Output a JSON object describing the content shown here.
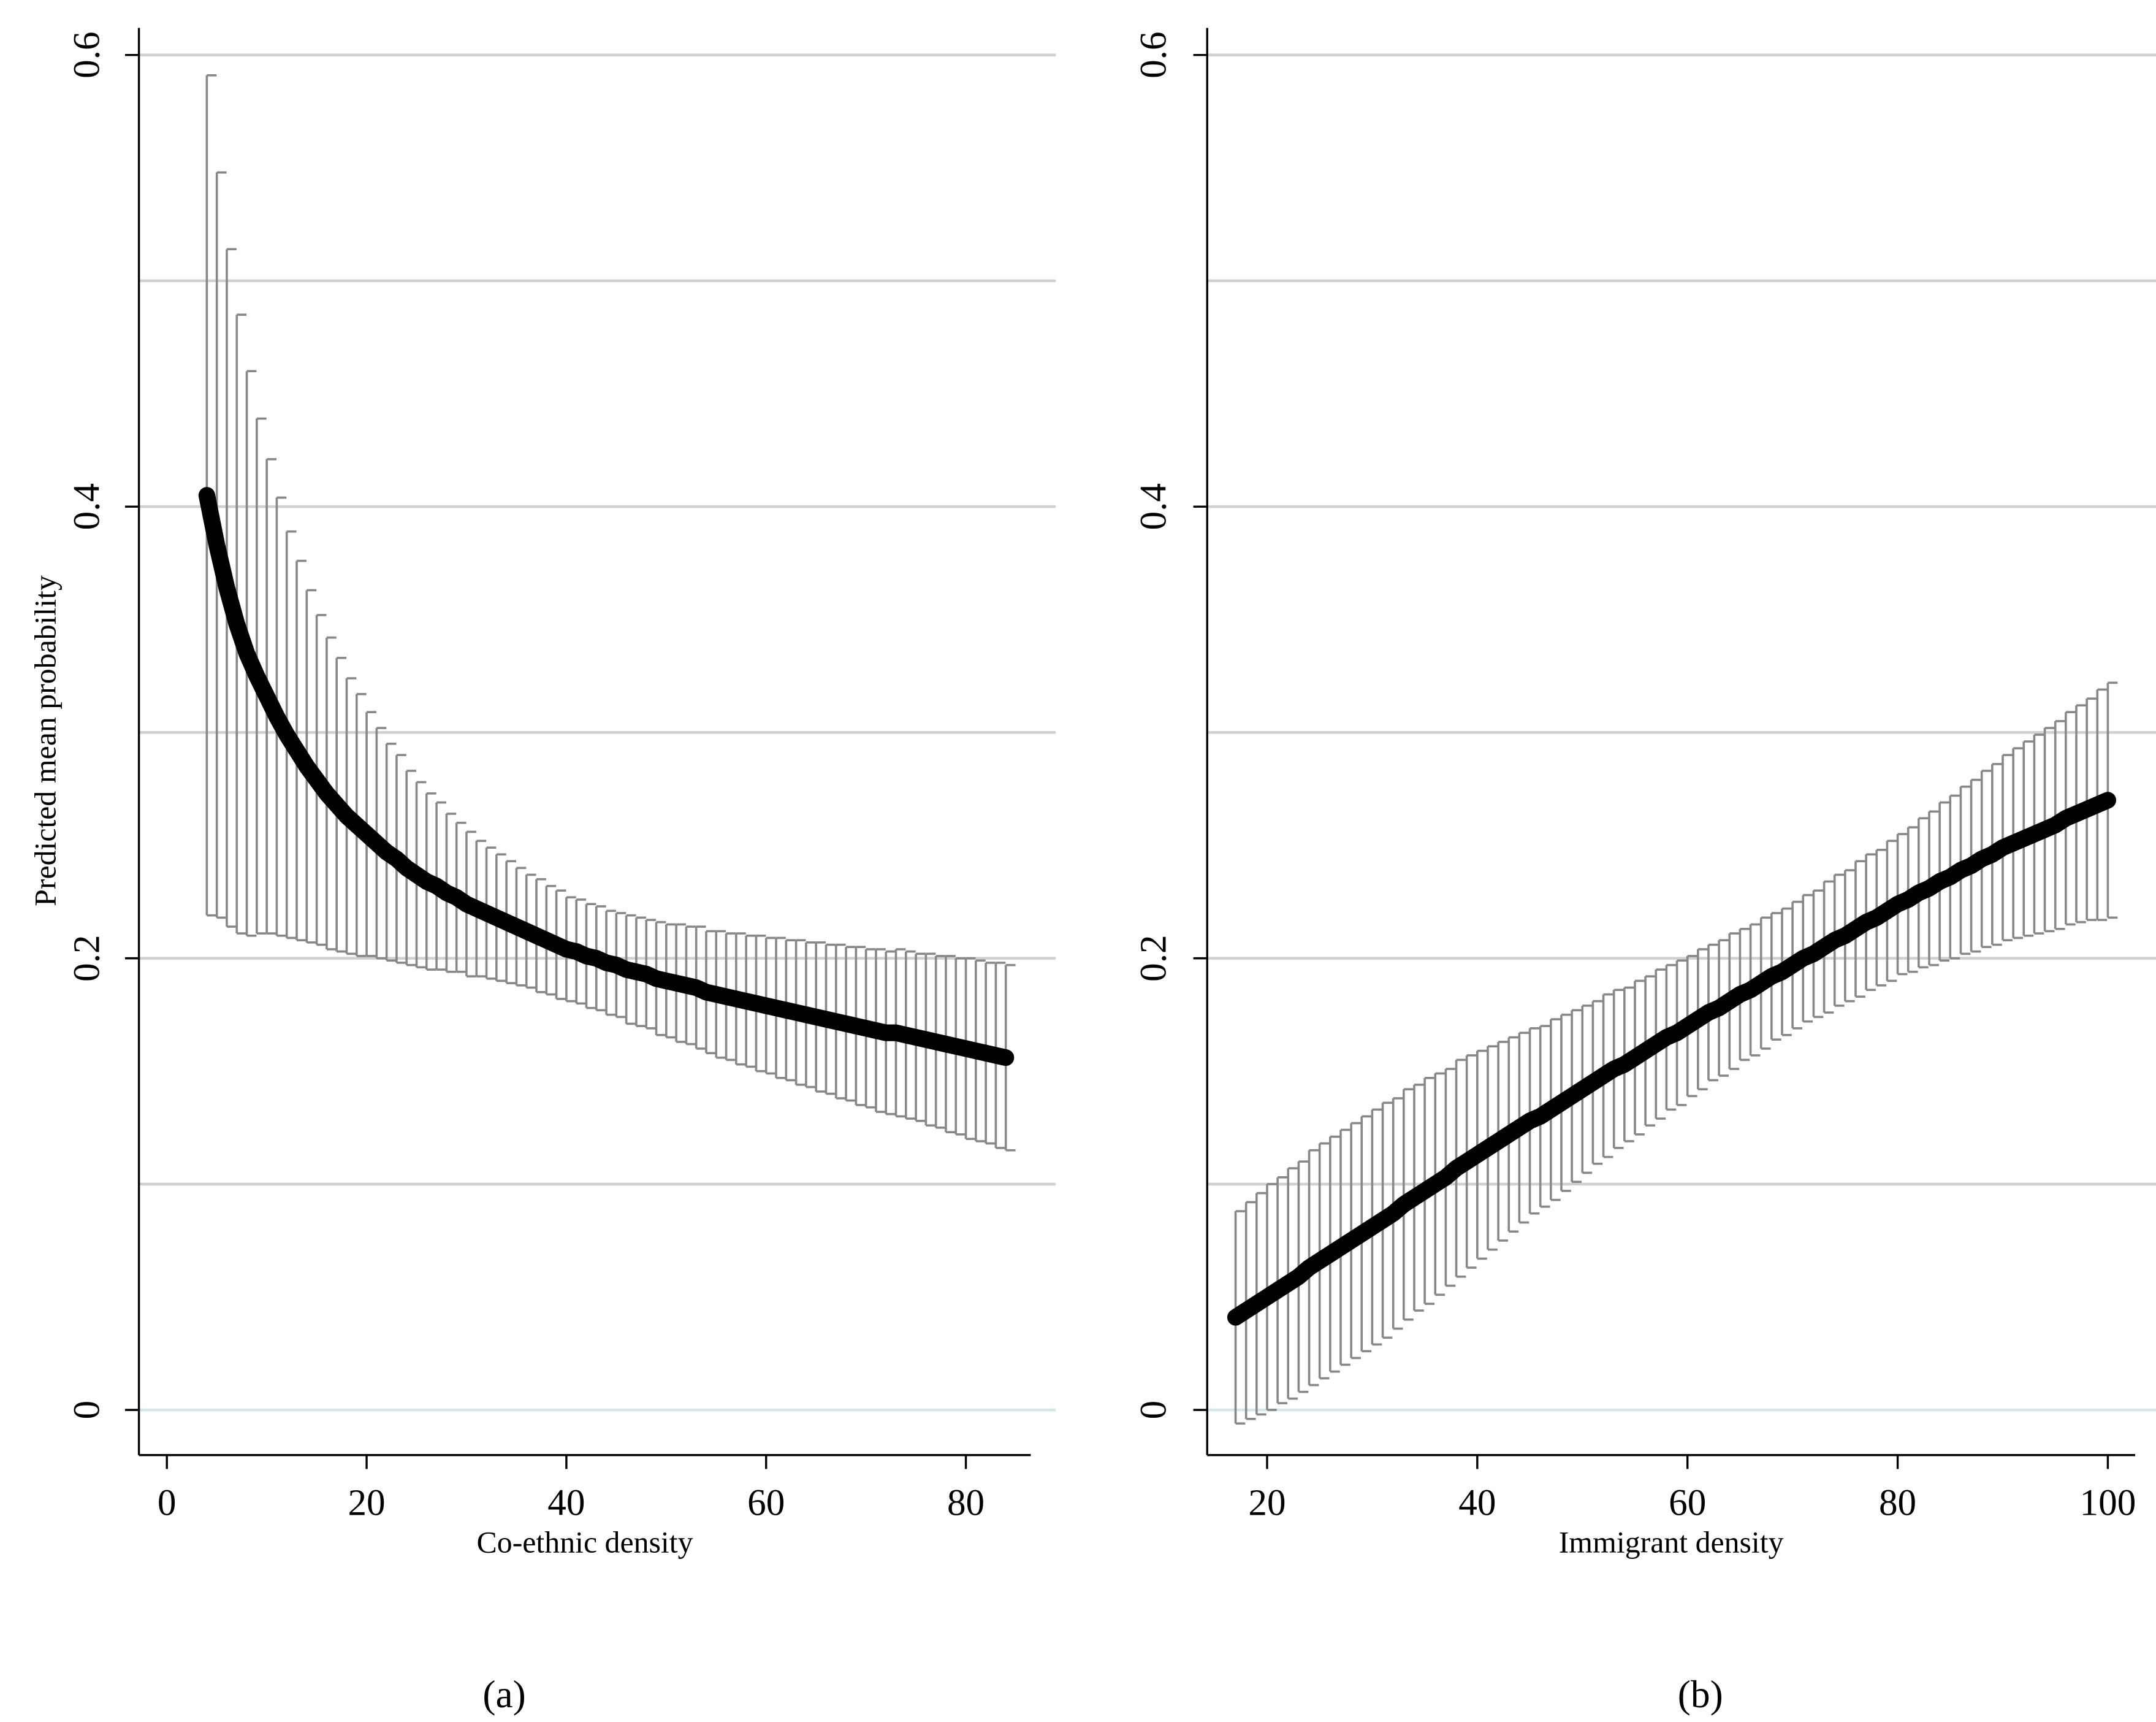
{
  "chart_data": [
    {
      "type": "line",
      "y_label": "Predicted mean probability",
      "x_label": "Co-ethnic density",
      "caption": "(a)",
      "color": "#000000",
      "error_color": "#888888",
      "grid": true,
      "xlim": [
        -2.8,
        86.5
      ],
      "ylim": [
        -0.02,
        0.612
      ],
      "xticks": [
        0,
        20,
        40,
        60,
        80
      ],
      "yticks": [
        0,
        0.2,
        0.4,
        0.6
      ],
      "grid_values": [
        0,
        0.1,
        0.2,
        0.3,
        0.4,
        0.5,
        0.6
      ],
      "x": [
        4,
        5,
        6,
        7,
        8,
        9,
        10,
        11,
        12,
        13,
        14,
        15,
        16,
        17,
        18,
        19,
        20,
        21,
        22,
        23,
        24,
        25,
        26,
        27,
        28,
        29,
        30,
        31,
        32,
        33,
        34,
        35,
        36,
        37,
        38,
        39,
        40,
        41,
        42,
        43,
        44,
        45,
        46,
        47,
        48,
        49,
        50,
        51,
        52,
        53,
        54,
        55,
        56,
        57,
        58,
        59,
        60,
        61,
        62,
        63,
        64,
        65,
        66,
        67,
        68,
        69,
        70,
        71,
        72,
        73,
        74,
        75,
        76,
        77,
        78,
        79,
        80,
        81,
        82,
        83,
        84
      ],
      "values": [
        0.405,
        0.383,
        0.364,
        0.348,
        0.335,
        0.325,
        0.316,
        0.307,
        0.299,
        0.292,
        0.285,
        0.279,
        0.273,
        0.268,
        0.263,
        0.259,
        0.255,
        0.251,
        0.247,
        0.244,
        0.24,
        0.237,
        0.234,
        0.232,
        0.229,
        0.227,
        0.224,
        0.222,
        0.22,
        0.218,
        0.216,
        0.214,
        0.212,
        0.21,
        0.208,
        0.206,
        0.204,
        0.203,
        0.201,
        0.2,
        0.198,
        0.197,
        0.195,
        0.194,
        0.193,
        0.191,
        0.19,
        0.189,
        0.188,
        0.187,
        0.185,
        0.184,
        0.183,
        0.182,
        0.181,
        0.18,
        0.179,
        0.178,
        0.177,
        0.176,
        0.175,
        0.174,
        0.173,
        0.172,
        0.171,
        0.17,
        0.169,
        0.168,
        0.167,
        0.167,
        0.166,
        0.165,
        0.164,
        0.163,
        0.162,
        0.161,
        0.16,
        0.159,
        0.158,
        0.157,
        0.156
      ],
      "errors": [
        0.186,
        0.165,
        0.15,
        0.137,
        0.125,
        0.114,
        0.105,
        0.097,
        0.09,
        0.084,
        0.078,
        0.073,
        0.069,
        0.065,
        0.061,
        0.058,
        0.054,
        0.051,
        0.048,
        0.046,
        0.043,
        0.041,
        0.039,
        0.037,
        0.035,
        0.033,
        0.032,
        0.03,
        0.029,
        0.028,
        0.027,
        0.026,
        0.025,
        0.025,
        0.024,
        0.024,
        0.023,
        0.023,
        0.023,
        0.023,
        0.023,
        0.023,
        0.024,
        0.024,
        0.024,
        0.025,
        0.025,
        0.026,
        0.026,
        0.027,
        0.027,
        0.028,
        0.028,
        0.029,
        0.029,
        0.03,
        0.03,
        0.031,
        0.031,
        0.032,
        0.032,
        0.033,
        0.033,
        0.034,
        0.034,
        0.035,
        0.035,
        0.036,
        0.036,
        0.037,
        0.037,
        0.037,
        0.038,
        0.038,
        0.039,
        0.039,
        0.04,
        0.04,
        0.04,
        0.041,
        0.041
      ]
    },
    {
      "type": "line",
      "x_label": "Immigrant density",
      "caption": "(b)",
      "color": "#000000",
      "error_color": "#888888",
      "grid": true,
      "xlim": [
        14.3,
        102.6
      ],
      "ylim": [
        -0.02,
        0.612
      ],
      "xticks": [
        20,
        40,
        60,
        80,
        100
      ],
      "yticks": [
        0,
        0.2,
        0.4,
        0.6
      ],
      "grid_values": [
        0,
        0.1,
        0.2,
        0.3,
        0.4,
        0.5,
        0.6
      ],
      "x": [
        17,
        18,
        19,
        20,
        21,
        22,
        23,
        24,
        25,
        26,
        27,
        28,
        29,
        30,
        31,
        32,
        33,
        34,
        35,
        36,
        37,
        38,
        39,
        40,
        41,
        42,
        43,
        44,
        45,
        46,
        47,
        48,
        49,
        50,
        51,
        52,
        53,
        54,
        55,
        56,
        57,
        58,
        59,
        60,
        61,
        62,
        63,
        64,
        65,
        66,
        67,
        68,
        69,
        70,
        71,
        72,
        73,
        74,
        75,
        76,
        77,
        78,
        79,
        80,
        81,
        82,
        83,
        84,
        85,
        86,
        87,
        88,
        89,
        90,
        91,
        92,
        93,
        94,
        95,
        96,
        97,
        98,
        99,
        100
      ],
      "values": [
        0.041,
        0.044,
        0.047,
        0.05,
        0.053,
        0.056,
        0.059,
        0.063,
        0.066,
        0.069,
        0.072,
        0.075,
        0.078,
        0.081,
        0.084,
        0.087,
        0.091,
        0.094,
        0.097,
        0.1,
        0.103,
        0.107,
        0.11,
        0.113,
        0.116,
        0.119,
        0.122,
        0.125,
        0.128,
        0.13,
        0.133,
        0.136,
        0.139,
        0.142,
        0.145,
        0.148,
        0.151,
        0.153,
        0.156,
        0.159,
        0.162,
        0.165,
        0.167,
        0.17,
        0.173,
        0.176,
        0.178,
        0.181,
        0.184,
        0.186,
        0.189,
        0.192,
        0.194,
        0.197,
        0.2,
        0.202,
        0.205,
        0.208,
        0.21,
        0.213,
        0.216,
        0.218,
        0.221,
        0.224,
        0.226,
        0.229,
        0.231,
        0.234,
        0.236,
        0.239,
        0.241,
        0.244,
        0.246,
        0.249,
        0.251,
        0.253,
        0.255,
        0.257,
        0.259,
        0.262,
        0.264,
        0.266,
        0.268,
        0.27
      ],
      "errors": [
        0.047,
        0.048,
        0.049,
        0.05,
        0.05,
        0.051,
        0.051,
        0.052,
        0.052,
        0.052,
        0.052,
        0.052,
        0.052,
        0.052,
        0.052,
        0.051,
        0.051,
        0.05,
        0.05,
        0.049,
        0.048,
        0.048,
        0.047,
        0.046,
        0.045,
        0.044,
        0.043,
        0.042,
        0.041,
        0.04,
        0.04,
        0.039,
        0.038,
        0.037,
        0.036,
        0.036,
        0.035,
        0.034,
        0.034,
        0.033,
        0.033,
        0.032,
        0.032,
        0.031,
        0.031,
        0.03,
        0.03,
        0.03,
        0.029,
        0.029,
        0.029,
        0.028,
        0.028,
        0.028,
        0.028,
        0.028,
        0.029,
        0.029,
        0.029,
        0.03,
        0.03,
        0.03,
        0.031,
        0.031,
        0.032,
        0.033,
        0.034,
        0.035,
        0.036,
        0.037,
        0.038,
        0.039,
        0.04,
        0.041,
        0.042,
        0.043,
        0.044,
        0.045,
        0.046,
        0.047,
        0.048,
        0.049,
        0.051,
        0.052
      ]
    }
  ]
}
